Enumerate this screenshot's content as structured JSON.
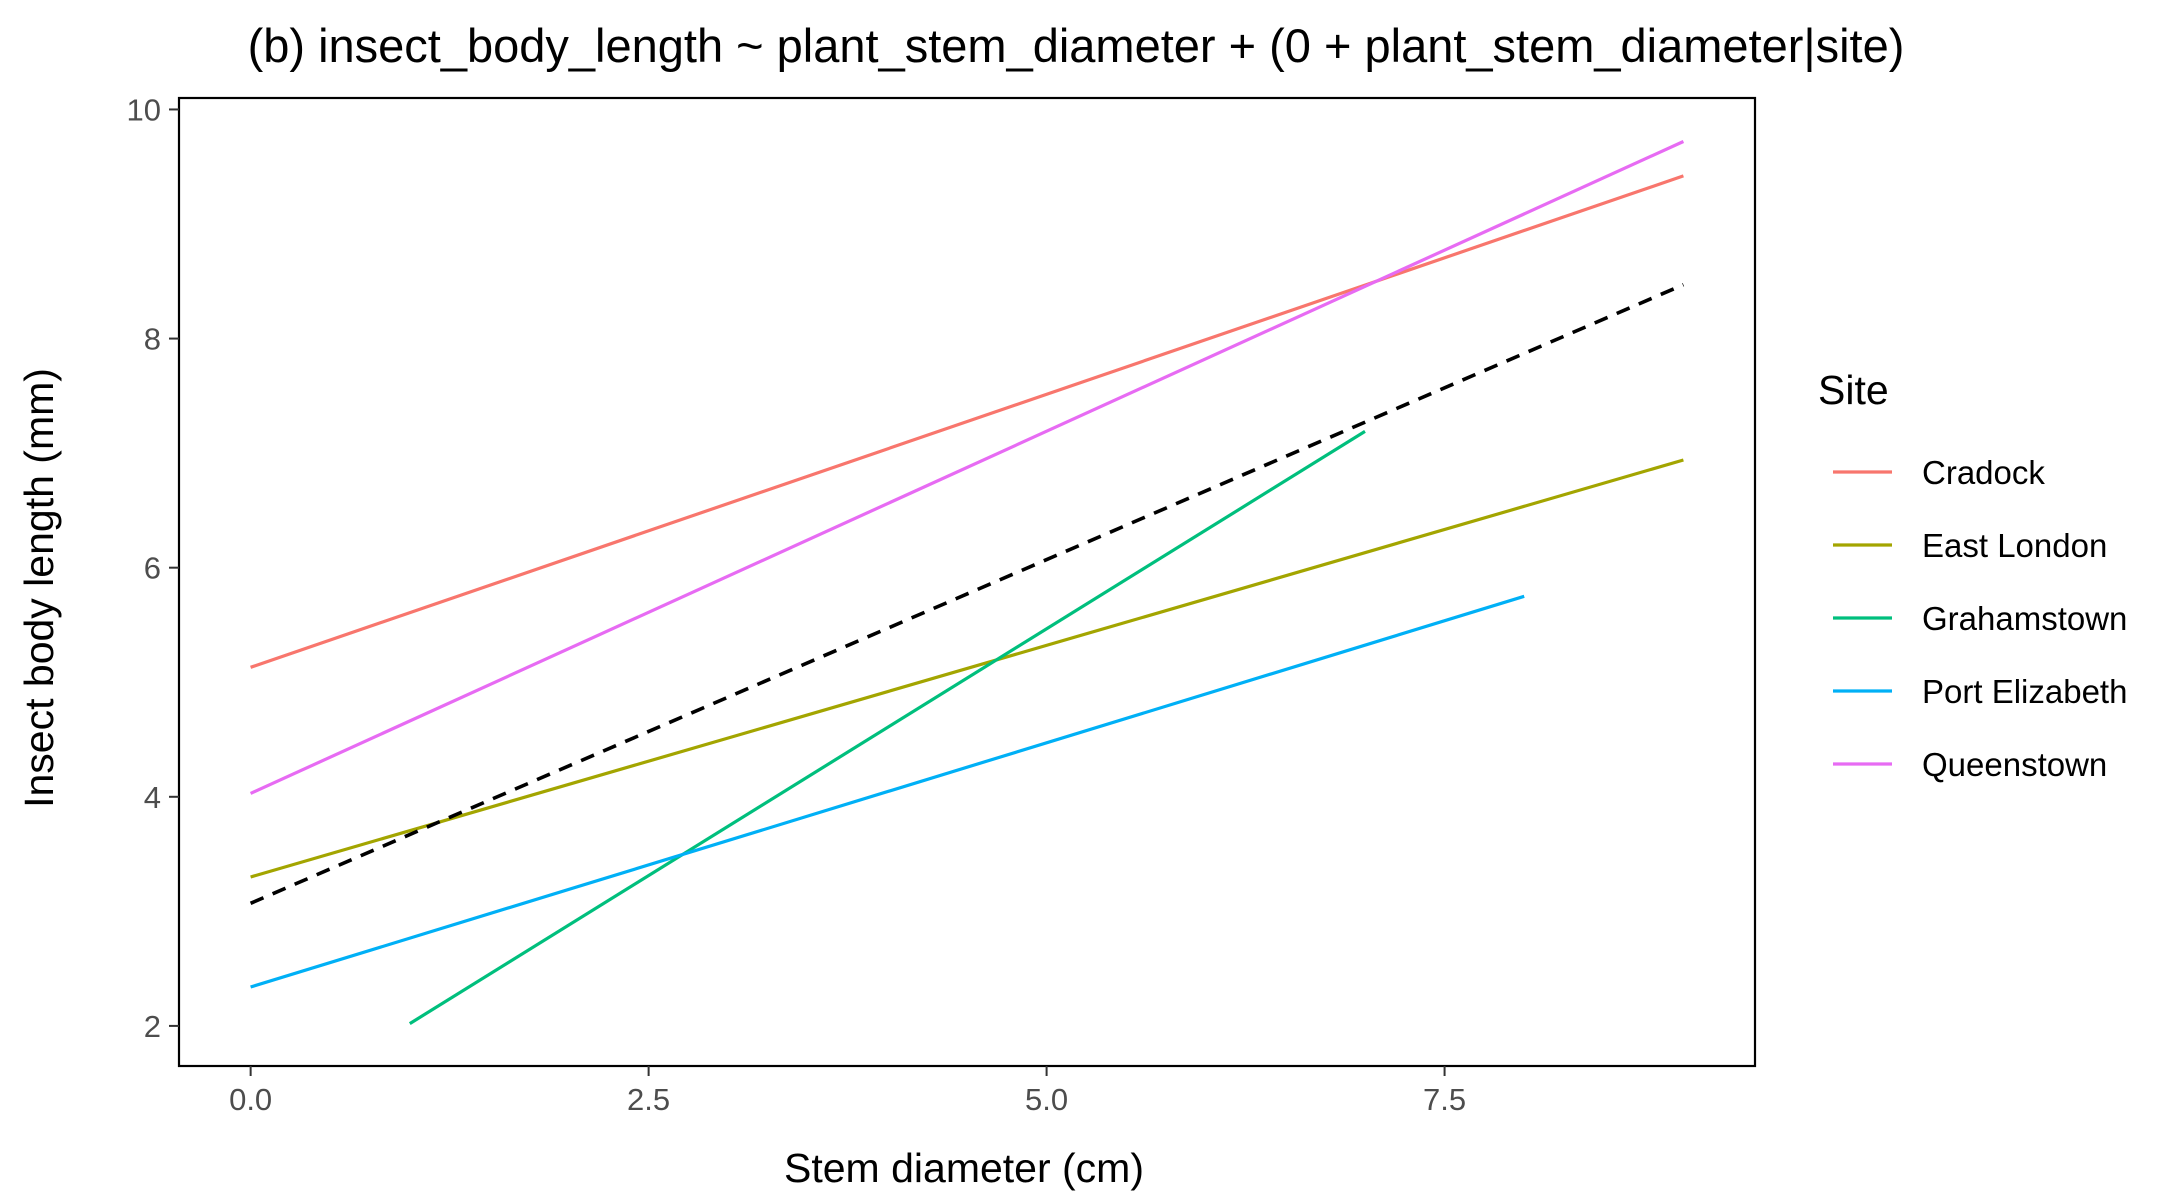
{
  "chart_data": {
    "type": "line",
    "title": "(b) insect_body_length ~ plant_stem_diameter + (0 + plant_stem_diameter|site)",
    "xlabel": "Stem diameter (cm)",
    "ylabel": "Insect body length (mm)",
    "xlim": [
      -0.45,
      9.45
    ],
    "ylim": [
      1.65,
      10.1
    ],
    "x_ticks": [
      0.0,
      2.5,
      5.0,
      7.5
    ],
    "x_tick_labels": [
      "0.0",
      "2.5",
      "5.0",
      "7.5"
    ],
    "y_ticks": [
      2,
      4,
      6,
      8,
      10
    ],
    "y_tick_labels": [
      "2",
      "4",
      "6",
      "8",
      "10"
    ],
    "grid": false,
    "legend": {
      "title": "Site",
      "position": "right"
    },
    "series": [
      {
        "name": "Cradock",
        "color": "#F8766D",
        "x": [
          0,
          9
        ],
        "y": [
          5.13,
          9.42
        ]
      },
      {
        "name": "East London",
        "color": "#A3A500",
        "x": [
          0,
          9
        ],
        "y": [
          3.3,
          6.94
        ]
      },
      {
        "name": "Grahamstown",
        "color": "#00BF7D",
        "x": [
          1,
          7
        ],
        "y": [
          2.02,
          7.19
        ]
      },
      {
        "name": "Port Elizabeth",
        "color": "#00B0F6",
        "x": [
          0,
          8
        ],
        "y": [
          2.34,
          5.75
        ]
      },
      {
        "name": "Queenstown",
        "color": "#E76BF3",
        "x": [
          0,
          9
        ],
        "y": [
          4.03,
          9.72
        ]
      }
    ],
    "overall_fit": {
      "style": "dashed",
      "color": "#000000",
      "x": [
        0,
        9
      ],
      "y": [
        3.07,
        8.47
      ]
    }
  }
}
